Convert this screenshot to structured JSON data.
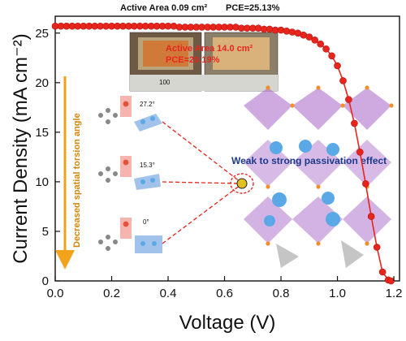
{
  "chart_data": {
    "type": "line",
    "xlabel": "Voltage (V)",
    "ylabel": "Current Density (mA cm⁻²)",
    "xlim": [
      0.0,
      1.22
    ],
    "ylim": [
      0,
      26.7
    ],
    "x_ticks": [
      "0.0",
      "0.2",
      "0.4",
      "0.6",
      "0.8",
      "1.0",
      "1.2"
    ],
    "y_ticks": [
      "0",
      "5",
      "10",
      "15",
      "20",
      "25"
    ],
    "grid": false,
    "series": [
      {
        "color": "#e8251d",
        "marker": "circle",
        "x": [
          0.0,
          0.02,
          0.04,
          0.06,
          0.08,
          0.1,
          0.12,
          0.14,
          0.16,
          0.18,
          0.2,
          0.22,
          0.24,
          0.26,
          0.28,
          0.3,
          0.32,
          0.34,
          0.36,
          0.38,
          0.4,
          0.42,
          0.44,
          0.46,
          0.48,
          0.5,
          0.52,
          0.54,
          0.56,
          0.58,
          0.6,
          0.62,
          0.64,
          0.66,
          0.68,
          0.7,
          0.72,
          0.74,
          0.76,
          0.78,
          0.8,
          0.82,
          0.84,
          0.86,
          0.88,
          0.9,
          0.92,
          0.94,
          0.96,
          0.98,
          1.0,
          1.02,
          1.04,
          1.06,
          1.08,
          1.1,
          1.12,
          1.14,
          1.16,
          1.18,
          1.19
        ],
        "y": [
          25.7,
          25.7,
          25.7,
          25.7,
          25.7,
          25.7,
          25.7,
          25.7,
          25.7,
          25.7,
          25.7,
          25.7,
          25.7,
          25.7,
          25.7,
          25.7,
          25.7,
          25.7,
          25.7,
          25.7,
          25.7,
          25.7,
          25.6,
          25.6,
          25.6,
          25.6,
          25.6,
          25.6,
          25.6,
          25.6,
          25.6,
          25.6,
          25.6,
          25.5,
          25.5,
          25.5,
          25.5,
          25.4,
          25.4,
          25.3,
          25.3,
          25.2,
          25.1,
          25.0,
          24.8,
          24.6,
          24.3,
          23.9,
          23.4,
          22.7,
          21.7,
          20.2,
          18.3,
          15.9,
          13.0,
          9.8,
          6.5,
          3.4,
          0.9,
          0.1,
          0.0
        ]
      }
    ],
    "annotations": {
      "header_area": "Active Area 0.09 cm²",
      "header_pce": "PCE=25.13%",
      "photo_area": "Active Area 14.0 cm²",
      "photo_pce": "PCE=20.19%",
      "photo_ruler": "100",
      "angle_1": "27.2°",
      "angle_2": "15.3°",
      "angle_3": "0°",
      "side_label": "Decreased spatial torsion angle",
      "effect_label": "Weak to strong passivation effect"
    }
  },
  "colors": {
    "curve": "#e8251d",
    "arrow": "#f1a31b",
    "side_text": "#d4860a",
    "effect_text": "#1d3a8a",
    "octahedra": "#a865c9",
    "cations": "#5aa9e6",
    "highlight_boxes": "#f3a29a",
    "blue_boxes": "#8fb7e8"
  }
}
